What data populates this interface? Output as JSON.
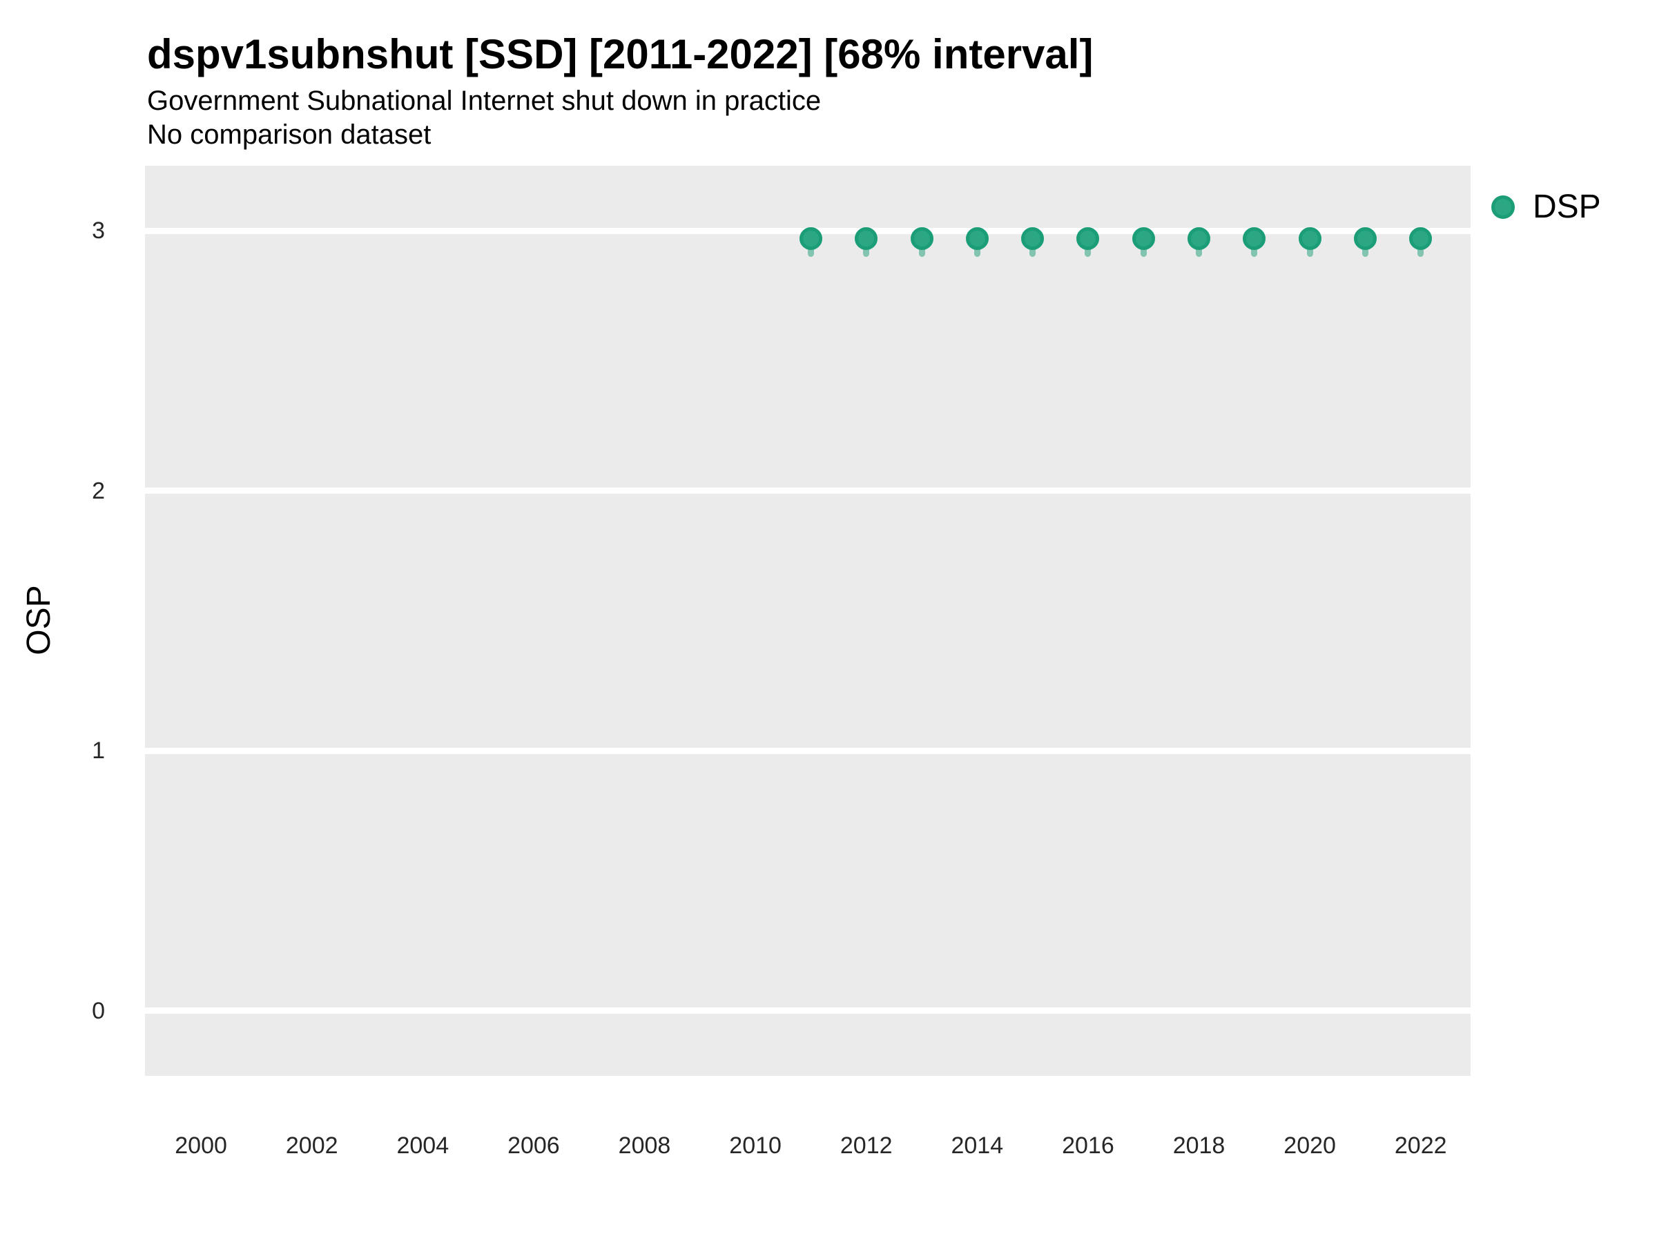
{
  "chart_data": {
    "type": "scatter",
    "title": "dspv1subnshut [SSD] [2011-2022] [68% interval]",
    "subtitle": "Government Subnational Internet shut down in practice",
    "note": "No comparison dataset",
    "xlabel": "",
    "ylabel": "OSP",
    "interval_level": "68%",
    "legend_position": "right-top",
    "grid": "horizontal major gridlines only, white on gray panel",
    "panel_bg": "#EBEBEB",
    "gridline_color": "#FFFFFF",
    "x_ticks": [
      2000,
      2002,
      2004,
      2006,
      2008,
      2010,
      2012,
      2014,
      2016,
      2018,
      2020,
      2022
    ],
    "y_ticks": [
      0,
      1,
      2,
      3
    ],
    "xlim": [
      1998.99,
      2022.9
    ],
    "ylim": [
      -0.25,
      3.25
    ],
    "legend": [
      {
        "label": "DSP",
        "color": "#1B9E77"
      }
    ],
    "series": [
      {
        "name": "DSP",
        "point_color": "#1B9E77",
        "point_fill": "#2BA784",
        "interval_color": "rgba(27,158,119,0.5)",
        "x": [
          2011,
          2012,
          2013,
          2014,
          2015,
          2016,
          2017,
          2018,
          2019,
          2020,
          2021,
          2022
        ],
        "y": [
          2.97,
          2.97,
          2.97,
          2.97,
          2.97,
          2.97,
          2.97,
          2.97,
          2.97,
          2.97,
          2.97,
          2.97
        ],
        "y_low": [
          2.9,
          2.9,
          2.9,
          2.9,
          2.9,
          2.9,
          2.9,
          2.9,
          2.9,
          2.9,
          2.9,
          2.9
        ],
        "y_high": [
          3.01,
          3.01,
          3.01,
          3.01,
          3.01,
          3.01,
          3.01,
          3.01,
          3.01,
          3.01,
          3.01,
          3.01
        ]
      }
    ]
  }
}
